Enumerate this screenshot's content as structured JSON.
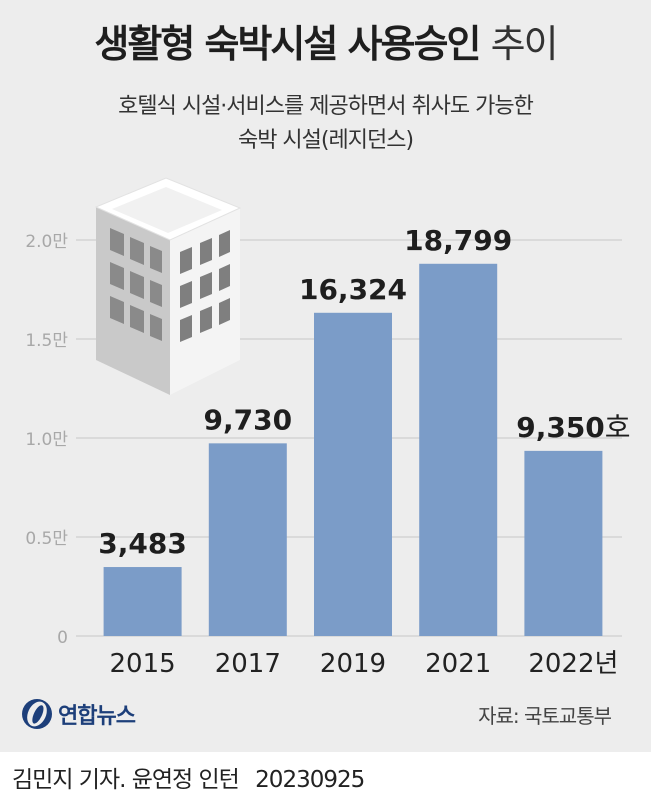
{
  "header": {
    "title_bold": "생활형 숙박시설 사용승인",
    "title_light": "추이",
    "subtitle_line1": "호텔식 시설·서비스를 제공하면서 취사도 가능한",
    "subtitle_line2": "숙박 시설(레지던스)"
  },
  "chart_data": {
    "type": "bar",
    "categories": [
      "2015",
      "2017",
      "2019",
      "2021",
      "2022년"
    ],
    "values": [
      3483,
      9730,
      16324,
      18799,
      9350
    ],
    "value_labels": [
      "3,483",
      "9,730",
      "16,324",
      "18,799",
      "9,350"
    ],
    "value_unit": "호",
    "title": "생활형 숙박시설 사용승인 추이",
    "xlabel": "",
    "ylabel": "",
    "ylim": [
      0,
      20000
    ],
    "yticks": [
      {
        "value": 0,
        "label": "0"
      },
      {
        "value": 5000,
        "label": "0.5만"
      },
      {
        "value": 10000,
        "label": "1.0만"
      },
      {
        "value": 15000,
        "label": "1.5만"
      },
      {
        "value": 20000,
        "label": "2.0만"
      }
    ],
    "grid": true,
    "bar_color": "#7b9cc8"
  },
  "colors": {
    "background": "#ededed",
    "bar": "#7b9cc8",
    "grid": "#d4d4d4",
    "axis_text": "#a8a8a8",
    "logo": "#1d3f7a"
  },
  "decoration": {
    "illustration": "building-icon",
    "logo_icon": "yonhap-logo-icon"
  },
  "footer": {
    "logo_text": "연합뉴스",
    "source": "자료: 국토교통부",
    "credit": "김민지 기자. 윤연정 인턴",
    "date": "20230925"
  }
}
